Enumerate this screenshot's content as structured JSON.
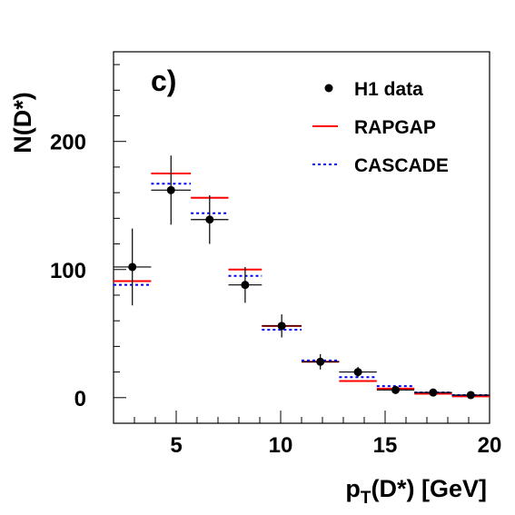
{
  "chart_data": {
    "type": "scatter",
    "panel_label": "c)",
    "xlabel_main": "p",
    "xlabel_sub": "T",
    "xlabel_rest": "(D*) [GeV]",
    "ylabel": "N(D*)",
    "xlim": [
      2.0,
      20.0
    ],
    "ylim": [
      -20,
      270
    ],
    "x_ticks": [
      5,
      10,
      15,
      20
    ],
    "y_ticks": [
      0,
      100,
      200
    ],
    "bin_edges": [
      2.0,
      3.8,
      5.7,
      7.5,
      9.1,
      11.0,
      12.8,
      14.6,
      16.4,
      18.2,
      20.0
    ],
    "series": [
      {
        "name": "H1 data",
        "kind": "points",
        "color": "#000000",
        "x": [
          2.9,
          4.75,
          6.6,
          8.3,
          10.05,
          11.9,
          13.7,
          15.5,
          17.3,
          19.1
        ],
        "y": [
          102,
          162,
          139,
          88,
          56,
          28,
          20,
          6,
          4,
          2
        ],
        "yerr": [
          30,
          27,
          19,
          14,
          9,
          6,
          4,
          2,
          2,
          1
        ]
      },
      {
        "name": "RAPGAP",
        "kind": "hist",
        "color": "#ff0000",
        "values": [
          91,
          175,
          156,
          100,
          56,
          28,
          13,
          7,
          3,
          1
        ]
      },
      {
        "name": "CASCADE",
        "kind": "hist-dotted",
        "color": "#0000ff",
        "values": [
          88,
          167,
          144,
          95,
          53,
          29,
          16,
          9,
          4,
          2
        ]
      }
    ],
    "legend_position": "top-right"
  }
}
